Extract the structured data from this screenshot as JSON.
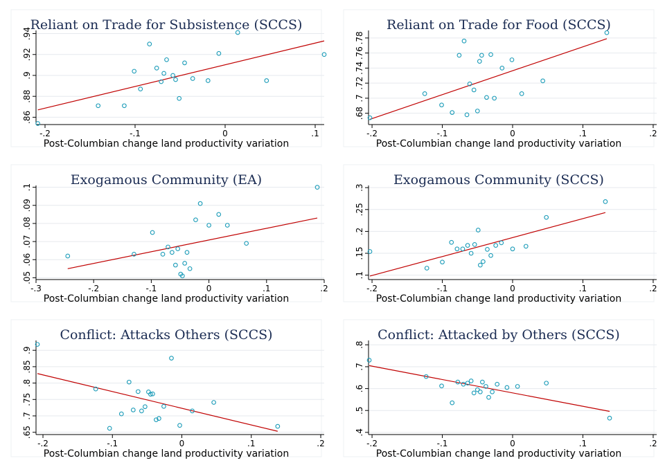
{
  "chart_data": [
    {
      "type": "scatter",
      "title": "Reliant on Trade for Subsistence (SCCS)",
      "xlabel": "Post-Columbian change land productivity variation",
      "ylabel": "",
      "xlim": [
        -0.21,
        0.11
      ],
      "ylim": [
        0.853,
        0.943
      ],
      "xticks": [
        -0.2,
        -0.1,
        0,
        0.1
      ],
      "xtick_labels": [
        "-.2",
        "-.1",
        "0",
        ".1"
      ],
      "yticks": [
        0.86,
        0.88,
        0.9,
        0.92,
        0.94
      ],
      "ytick_labels": [
        ".86",
        ".88",
        ".9",
        ".92",
        ".94"
      ],
      "grid": true,
      "points": {
        "x": [
          -0.208,
          -0.141,
          -0.112,
          -0.101,
          -0.094,
          -0.084,
          -0.076,
          -0.071,
          -0.068,
          -0.065,
          -0.058,
          -0.055,
          -0.051,
          -0.045,
          -0.036,
          -0.019,
          -0.007,
          0.014,
          0.046,
          0.11
        ],
        "y": [
          0.854,
          0.871,
          0.871,
          0.904,
          0.887,
          0.93,
          0.907,
          0.894,
          0.902,
          0.915,
          0.9,
          0.896,
          0.878,
          0.912,
          0.897,
          0.895,
          0.921,
          0.941,
          0.895,
          0.92
        ]
      },
      "fit": {
        "x": [
          -0.208,
          0.11
        ],
        "y": [
          0.867,
          0.933
        ]
      }
    },
    {
      "type": "scatter",
      "title": "Reliant on Trade for Food (SCCS)",
      "xlabel": "Post-Columbian change land productivity variation",
      "ylabel": "",
      "xlim": [
        -0.205,
        0.205
      ],
      "ylim": [
        0.665,
        0.79
      ],
      "xticks": [
        -0.2,
        -0.1,
        0,
        0.1,
        0.2
      ],
      "xtick_labels": [
        "-.2",
        "-.1",
        "0",
        ".1",
        ".2"
      ],
      "yticks": [
        0.68,
        0.7,
        0.72,
        0.74,
        0.76,
        0.78
      ],
      "ytick_labels": [
        ".68",
        ".7",
        ".72",
        ".74",
        ".76",
        ".78"
      ],
      "grid": true,
      "points": {
        "x": [
          -0.203,
          -0.125,
          -0.101,
          -0.086,
          -0.076,
          -0.069,
          -0.065,
          -0.061,
          -0.055,
          -0.05,
          -0.047,
          -0.044,
          -0.037,
          -0.031,
          -0.026,
          -0.015,
          -0.001,
          0.013,
          0.043,
          0.134
        ],
        "y": [
          0.674,
          0.706,
          0.691,
          0.681,
          0.757,
          0.776,
          0.678,
          0.719,
          0.711,
          0.683,
          0.749,
          0.757,
          0.701,
          0.758,
          0.7,
          0.74,
          0.751,
          0.706,
          0.723,
          0.787
        ]
      },
      "fit": {
        "x": [
          -0.203,
          0.134
        ],
        "y": [
          0.672,
          0.779
        ]
      }
    },
    {
      "type": "scatter",
      "title": "Exogamous Community (EA)",
      "xlabel": "Post-Columbian change land productivity variation",
      "ylabel": "",
      "xlim": [
        -0.3,
        0.2
      ],
      "ylim": [
        0.049,
        0.101
      ],
      "xticks": [
        -0.3,
        -0.2,
        -0.1,
        0,
        0.1,
        0.2
      ],
      "xtick_labels": [
        "-.3",
        "-.2",
        "-.1",
        "0",
        ".1",
        ".2"
      ],
      "yticks": [
        0.05,
        0.06,
        0.07,
        0.08,
        0.09,
        0.1
      ],
      "ytick_labels": [
        ".05",
        ".06",
        ".07",
        ".08",
        ".09",
        ".1"
      ],
      "grid": true,
      "points": {
        "x": [
          -0.245,
          -0.13,
          -0.098,
          -0.08,
          -0.071,
          -0.064,
          -0.058,
          -0.054,
          -0.049,
          -0.046,
          -0.042,
          -0.038,
          -0.033,
          -0.023,
          -0.015,
          0.0,
          0.017,
          0.032,
          0.065,
          0.188
        ],
        "y": [
          0.062,
          0.063,
          0.075,
          0.063,
          0.067,
          0.064,
          0.057,
          0.066,
          0.052,
          0.051,
          0.058,
          0.064,
          0.055,
          0.082,
          0.091,
          0.079,
          0.085,
          0.079,
          0.069,
          0.1
        ]
      },
      "fit": {
        "x": [
          -0.245,
          0.188
        ],
        "y": [
          0.055,
          0.083
        ]
      }
    },
    {
      "type": "scatter",
      "title": "Exogamous Community (SCCS)",
      "xlabel": "Post-Columbian change land productivity variation",
      "ylabel": "",
      "xlim": [
        -0.205,
        0.205
      ],
      "ylim": [
        0.09,
        0.305
      ],
      "xticks": [
        -0.2,
        -0.1,
        0,
        0.1,
        0.2
      ],
      "xtick_labels": [
        "-.2",
        "-.1",
        "0",
        ".1",
        ".2"
      ],
      "yticks": [
        0.1,
        0.15,
        0.2,
        0.25,
        0.3
      ],
      "ytick_labels": [
        ".1",
        ".15",
        ".2",
        ".25",
        ".3"
      ],
      "grid": true,
      "points": {
        "x": [
          -0.203,
          -0.122,
          -0.1,
          -0.087,
          -0.079,
          -0.071,
          -0.064,
          -0.059,
          -0.054,
          -0.049,
          -0.046,
          -0.042,
          -0.036,
          -0.031,
          -0.024,
          -0.016,
          0.0,
          0.019,
          0.048,
          0.132
        ],
        "y": [
          0.154,
          0.116,
          0.13,
          0.175,
          0.16,
          0.16,
          0.168,
          0.15,
          0.17,
          0.203,
          0.123,
          0.131,
          0.159,
          0.145,
          0.168,
          0.174,
          0.16,
          0.166,
          0.232,
          0.268
        ]
      },
      "fit": {
        "x": [
          -0.203,
          0.132
        ],
        "y": [
          0.098,
          0.243
        ]
      }
    },
    {
      "type": "scatter",
      "title": "Conflict: Attacks Others (SCCS)",
      "xlabel": "Post-Columbian change land productivity variation",
      "ylabel": "",
      "xlim": [
        -0.21,
        0.205
      ],
      "ylim": [
        0.643,
        0.93
      ],
      "xticks": [
        -0.2,
        -0.1,
        0,
        0.1,
        0.2
      ],
      "xtick_labels": [
        "-.2",
        "-.1",
        "0",
        ".1",
        ".2"
      ],
      "yticks": [
        0.65,
        0.7,
        0.75,
        0.8,
        0.85,
        0.9
      ],
      "ytick_labels": [
        ".65",
        ".7",
        ".75",
        ".8",
        ".85",
        ".9"
      ],
      "grid": true,
      "points": {
        "x": [
          -0.208,
          -0.124,
          -0.104,
          -0.087,
          -0.076,
          -0.07,
          -0.063,
          -0.058,
          -0.053,
          -0.048,
          -0.045,
          -0.042,
          -0.037,
          -0.033,
          -0.026,
          -0.015,
          -0.003,
          0.015,
          0.046,
          0.138
        ],
        "y": [
          0.918,
          0.782,
          0.662,
          0.706,
          0.803,
          0.718,
          0.774,
          0.715,
          0.728,
          0.773,
          0.766,
          0.767,
          0.688,
          0.692,
          0.729,
          0.876,
          0.671,
          0.715,
          0.741,
          0.668
        ]
      },
      "fit": {
        "x": [
          -0.208,
          0.138
        ],
        "y": [
          0.829,
          0.653
        ]
      }
    },
    {
      "type": "scatter",
      "title": "Conflict: Attacked by Others (SCCS)",
      "xlabel": "Post-Columbian change land productivity variation",
      "ylabel": "",
      "xlim": [
        -0.205,
        0.205
      ],
      "ylim": [
        0.39,
        0.82
      ],
      "xticks": [
        -0.2,
        -0.1,
        0,
        0.1,
        0.2
      ],
      "xtick_labels": [
        "-.2",
        "-.1",
        "0",
        ".1",
        ".2"
      ],
      "yticks": [
        0.4,
        0.5,
        0.6,
        0.7,
        0.8
      ],
      "ytick_labels": [
        ".4",
        ".5",
        ".6",
        ".7",
        ".8"
      ],
      "grid": true,
      "points": {
        "x": [
          -0.204,
          -0.123,
          -0.101,
          -0.086,
          -0.078,
          -0.07,
          -0.064,
          -0.059,
          -0.055,
          -0.05,
          -0.046,
          -0.043,
          -0.038,
          -0.034,
          -0.029,
          -0.022,
          -0.008,
          0.007,
          0.048,
          0.138
        ],
        "y": [
          0.73,
          0.655,
          0.612,
          0.535,
          0.63,
          0.62,
          0.625,
          0.635,
          0.58,
          0.595,
          0.585,
          0.63,
          0.61,
          0.56,
          0.585,
          0.62,
          0.605,
          0.61,
          0.625,
          0.465
        ]
      },
      "fit": {
        "x": [
          -0.204,
          0.138
        ],
        "y": [
          0.705,
          0.496
        ]
      }
    }
  ],
  "colors": {
    "marker": "#1a9bb8",
    "fit_line": "#c00000",
    "title": "#1a2b52",
    "grid": "#e6e9ee"
  }
}
